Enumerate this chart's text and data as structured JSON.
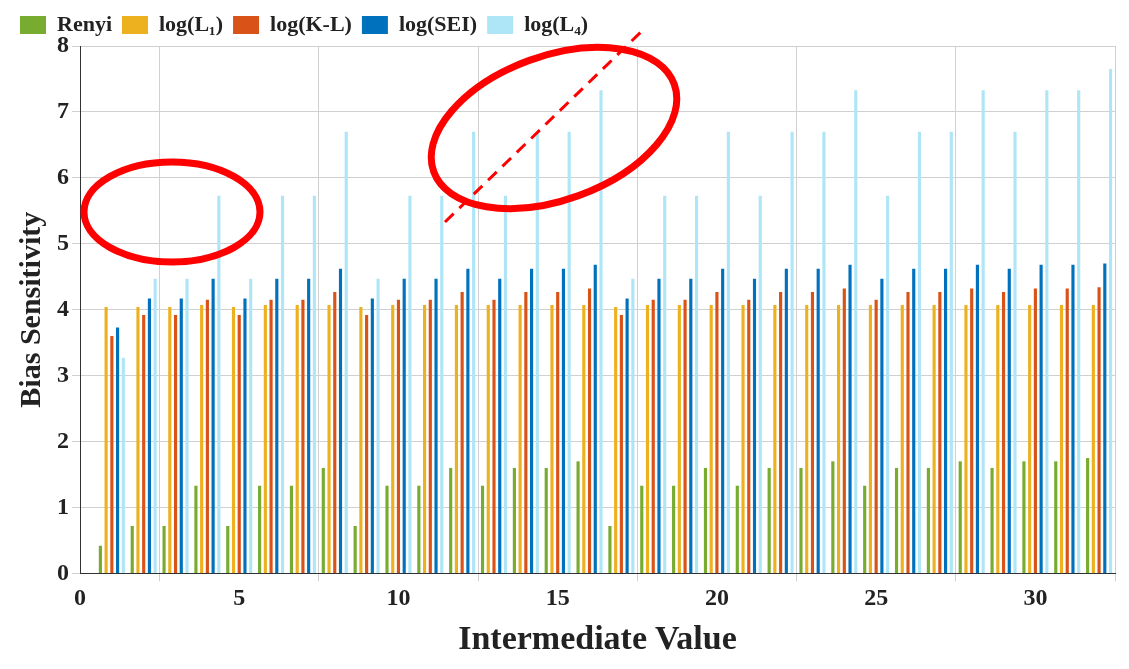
{
  "chart_data": {
    "type": "bar",
    "xlabel": "Intermediate Value",
    "ylabel": "Bias Sensitivity",
    "x": [
      1,
      2,
      3,
      4,
      5,
      6,
      7,
      8,
      9,
      10,
      11,
      12,
      13,
      14,
      15,
      16,
      17,
      18,
      19,
      20,
      21,
      22,
      23,
      24,
      25,
      26,
      27,
      28,
      29,
      30,
      31,
      32
    ],
    "xlim": [
      0,
      32.5
    ],
    "xticks": [
      0,
      5,
      10,
      15,
      20,
      25,
      30
    ],
    "ylim": [
      0,
      8
    ],
    "yticks": [
      0,
      1,
      2,
      3,
      4,
      5,
      6,
      7,
      8
    ],
    "series": [
      {
        "name": "Renyi",
        "color": "#77ac30",
        "values": [
          0.42,
          0.72,
          0.72,
          1.33,
          0.72,
          1.33,
          1.33,
          1.6,
          0.72,
          1.33,
          1.33,
          1.6,
          1.33,
          1.6,
          1.6,
          1.7,
          0.72,
          1.33,
          1.33,
          1.6,
          1.33,
          1.6,
          1.6,
          1.7,
          1.33,
          1.6,
          1.6,
          1.7,
          1.6,
          1.7,
          1.7,
          1.75
        ]
      },
      {
        "name": "log(L₁)",
        "color": "#edb120",
        "values": [
          4.04,
          4.04,
          4.04,
          4.07,
          4.04,
          4.07,
          4.07,
          4.07,
          4.04,
          4.07,
          4.07,
          4.07,
          4.07,
          4.07,
          4.07,
          4.07,
          4.04,
          4.07,
          4.07,
          4.07,
          4.07,
          4.07,
          4.07,
          4.07,
          4.07,
          4.07,
          4.07,
          4.07,
          4.07,
          4.07,
          4.07,
          4.07
        ]
      },
      {
        "name": "log(K-L)",
        "color": "#d95319",
        "values": [
          3.6,
          3.92,
          3.92,
          4.15,
          3.92,
          4.15,
          4.15,
          4.27,
          3.92,
          4.15,
          4.15,
          4.27,
          4.15,
          4.27,
          4.27,
          4.32,
          3.92,
          4.15,
          4.15,
          4.27,
          4.15,
          4.27,
          4.27,
          4.32,
          4.15,
          4.27,
          4.27,
          4.32,
          4.27,
          4.32,
          4.32,
          4.34
        ]
      },
      {
        "name": "log(SEI)",
        "color": "#0072bd",
        "values": [
          3.73,
          4.17,
          4.17,
          4.47,
          4.17,
          4.47,
          4.47,
          4.62,
          4.17,
          4.47,
          4.47,
          4.62,
          4.47,
          4.62,
          4.62,
          4.68,
          4.17,
          4.47,
          4.47,
          4.62,
          4.47,
          4.62,
          4.62,
          4.68,
          4.47,
          4.62,
          4.62,
          4.68,
          4.62,
          4.68,
          4.68,
          4.7
        ]
      },
      {
        "name": "log(L₄)",
        "color": "#aee6f7",
        "values": [
          3.27,
          4.47,
          4.47,
          5.73,
          4.47,
          5.73,
          5.73,
          6.7,
          4.47,
          5.73,
          5.73,
          6.7,
          5.73,
          6.7,
          6.7,
          7.33,
          4.47,
          5.73,
          5.73,
          6.7,
          5.73,
          6.7,
          6.7,
          7.33,
          5.73,
          6.7,
          6.7,
          7.33,
          6.7,
          7.33,
          7.33,
          7.65
        ]
      }
    ],
    "grid": true,
    "legend": "top left"
  }
}
